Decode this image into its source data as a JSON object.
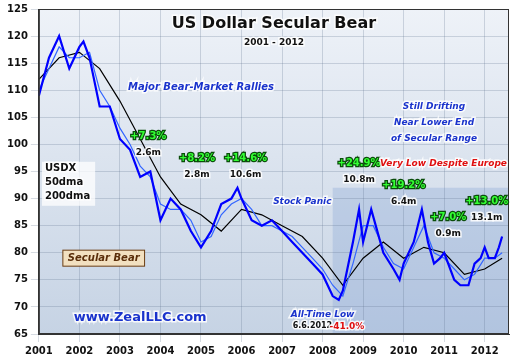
{
  "chart_data": {
    "type": "line",
    "title": "US Dollar Secular Bear",
    "subtitle": "2001 - 2012",
    "xlim": [
      2001,
      2012.6
    ],
    "xticks": [
      2001,
      2002,
      2003,
      2004,
      2005,
      2006,
      2007,
      2008,
      2009,
      2010,
      2011,
      2012
    ],
    "ylim": [
      65,
      125
    ],
    "yticks": [
      65,
      70,
      75,
      80,
      85,
      90,
      95,
      100,
      105,
      110,
      115,
      120,
      125
    ],
    "grid": true,
    "series": [
      {
        "name": "USDX",
        "color": "#0000ff",
        "x": [
          2001.0,
          2001.25,
          2001.5,
          2001.75,
          2002.0,
          2002.1,
          2002.25,
          2002.5,
          2002.75,
          2003.0,
          2003.25,
          2003.5,
          2003.75,
          2004.0,
          2004.25,
          2004.5,
          2004.75,
          2005.0,
          2005.25,
          2005.5,
          2005.75,
          2005.9,
          2006.0,
          2006.25,
          2006.5,
          2006.75,
          2007.0,
          2007.25,
          2007.5,
          2007.75,
          2008.0,
          2008.25,
          2008.4,
          2008.5,
          2008.75,
          2008.9,
          2009.0,
          2009.2,
          2009.5,
          2009.75,
          2009.9,
          2010.0,
          2010.25,
          2010.45,
          2010.6,
          2010.75,
          2010.9,
          2011.0,
          2011.25,
          2011.4,
          2011.6,
          2011.75,
          2011.9,
          2012.0,
          2012.1,
          2012.25,
          2012.35,
          2012.43
        ],
        "values": [
          109,
          116,
          120,
          114,
          118,
          119,
          116,
          107,
          107,
          101,
          99,
          94,
          95,
          86,
          90,
          88,
          84,
          81,
          84,
          89,
          90,
          92,
          90,
          86,
          85,
          86,
          84,
          82,
          80,
          78,
          76,
          72,
          71.3,
          73,
          82,
          88,
          82,
          88,
          80,
          77,
          75,
          78,
          82,
          88,
          82,
          78,
          79,
          80,
          75,
          74,
          74,
          78,
          79,
          81,
          79,
          79,
          81,
          83
        ]
      },
      {
        "name": "50dma",
        "color": "#3366ff",
        "x": [
          2001.0,
          2001.25,
          2001.5,
          2001.75,
          2002.0,
          2002.25,
          2002.5,
          2002.75,
          2003.0,
          2003.25,
          2003.5,
          2003.75,
          2004.0,
          2004.25,
          2004.5,
          2004.75,
          2005.0,
          2005.25,
          2005.5,
          2005.75,
          2006.0,
          2006.25,
          2006.5,
          2006.75,
          2007.0,
          2007.25,
          2007.5,
          2007.75,
          2008.0,
          2008.25,
          2008.5,
          2008.75,
          2009.0,
          2009.25,
          2009.5,
          2009.75,
          2010.0,
          2010.25,
          2010.5,
          2010.75,
          2011.0,
          2011.25,
          2011.5,
          2011.75,
          2012.0,
          2012.25,
          2012.43
        ],
        "values": [
          110,
          114,
          118,
          116,
          116,
          117,
          110,
          107,
          103,
          100,
          96,
          94,
          89,
          88,
          88,
          86,
          82,
          83,
          87,
          89,
          90,
          88,
          85,
          85,
          84,
          83,
          81,
          79,
          77,
          74,
          72,
          78,
          85,
          85,
          81,
          78,
          77,
          81,
          85,
          80,
          79,
          77,
          75,
          76,
          79,
          79,
          80
        ]
      },
      {
        "name": "200dma",
        "color": "#000000",
        "x": [
          2001.0,
          2001.5,
          2002.0,
          2002.5,
          2003.0,
          2003.5,
          2004.0,
          2004.5,
          2005.0,
          2005.5,
          2006.0,
          2006.5,
          2007.0,
          2007.5,
          2008.0,
          2008.5,
          2009.0,
          2009.5,
          2010.0,
          2010.5,
          2011.0,
          2011.5,
          2012.0,
          2012.43
        ],
        "values": [
          112,
          116,
          117,
          114,
          108,
          101,
          94,
          89,
          87,
          84,
          88,
          87,
          85,
          83,
          79,
          74,
          79,
          82,
          79,
          81,
          80,
          76,
          77,
          79
        ]
      }
    ],
    "annotations": [
      "Major Bear-Market Rallies",
      "+7.3%",
      "2.6m",
      "+8.2%",
      "2.8m",
      "+14.6%",
      "10.6m",
      "Stock Panic",
      "+24.9%",
      "10.8m",
      "+19.2%",
      "6.4m",
      "Still Drifting",
      "Near Lower End",
      "of Secular Range",
      "Very Low Despite Europe",
      "+7.0%",
      "0.9m",
      "+13.0%",
      "13.1m",
      "Secular Bear",
      "All-Time Low",
      "6.6.2012",
      "-41.0%",
      "www.ZealLLC.com"
    ]
  }
}
